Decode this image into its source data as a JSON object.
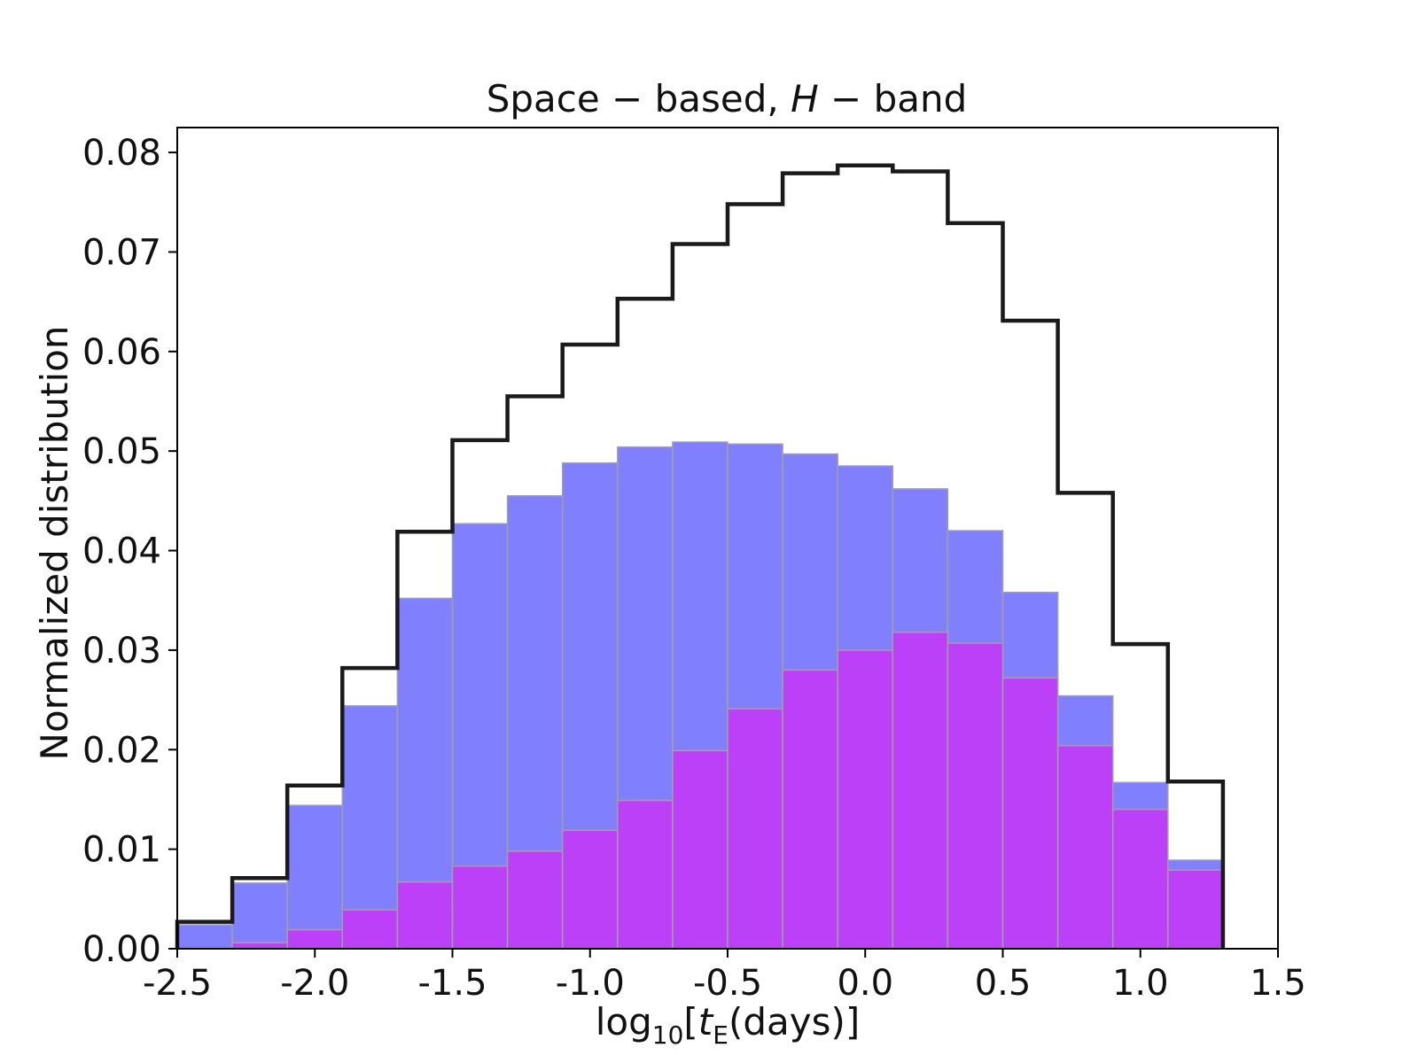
{
  "chart_data": {
    "type": "bar",
    "title": "Space − based, H − band",
    "title_parts": {
      "prefix": "Space − based, ",
      "italic": "H",
      "suffix": " − band"
    },
    "xlabel": "log10[tE(days)]",
    "xlabel_parts": {
      "log": "log",
      "sub10": "10",
      "open": "[",
      "t": "t",
      "subE": "E",
      "rest": "(days)]"
    },
    "ylabel": "Normalized distribution",
    "xlim": [
      -2.5,
      1.5
    ],
    "ylim": [
      0,
      0.0825
    ],
    "xticks": [
      -2.5,
      -2.0,
      -1.5,
      -1.0,
      -0.5,
      0.0,
      0.5,
      1.0,
      1.5
    ],
    "xtick_labels": [
      "-2.5",
      "-2.0",
      "-1.5",
      "-1.0",
      "-0.5",
      "0.0",
      "0.5",
      "1.0",
      "1.5"
    ],
    "yticks": [
      0,
      0.01,
      0.02,
      0.03,
      0.04,
      0.05,
      0.06,
      0.07,
      0.08
    ],
    "ytick_labels": [
      "0.00",
      "0.01",
      "0.02",
      "0.03",
      "0.04",
      "0.05",
      "0.06",
      "0.07",
      "0.08"
    ],
    "bin_edges": [
      -2.5,
      -2.3,
      -2.1,
      -1.9,
      -1.7,
      -1.5,
      -1.3,
      -1.1,
      -0.9,
      -0.7,
      -0.5,
      -0.3,
      -0.1,
      0.1,
      0.3,
      0.5,
      0.7,
      0.9,
      1.1,
      1.3
    ],
    "series": [
      {
        "name": "step outline",
        "kind": "step",
        "color": "#1a1a1a",
        "values": [
          0.0027,
          0.0071,
          0.0164,
          0.0282,
          0.0419,
          0.0511,
          0.0555,
          0.0607,
          0.0653,
          0.0708,
          0.0748,
          0.0779,
          0.0787,
          0.0781,
          0.0729,
          0.0631,
          0.0458,
          0.0306,
          0.0168
        ]
      },
      {
        "name": "blue histogram",
        "kind": "bar",
        "color": "#8080ff",
        "values": [
          0.0024,
          0.0066,
          0.0144,
          0.0244,
          0.0352,
          0.0427,
          0.0455,
          0.0488,
          0.0504,
          0.0509,
          0.0507,
          0.0497,
          0.0485,
          0.0462,
          0.042,
          0.0358,
          0.0254,
          0.0167,
          0.0089
        ]
      },
      {
        "name": "purple histogram",
        "kind": "bar",
        "color": "#bb40f8",
        "values": [
          0.0,
          0.0006,
          0.0019,
          0.0039,
          0.0067,
          0.0083,
          0.0098,
          0.0119,
          0.0149,
          0.0199,
          0.0241,
          0.028,
          0.03,
          0.0318,
          0.0307,
          0.0272,
          0.0204,
          0.014,
          0.0079
        ]
      }
    ]
  }
}
